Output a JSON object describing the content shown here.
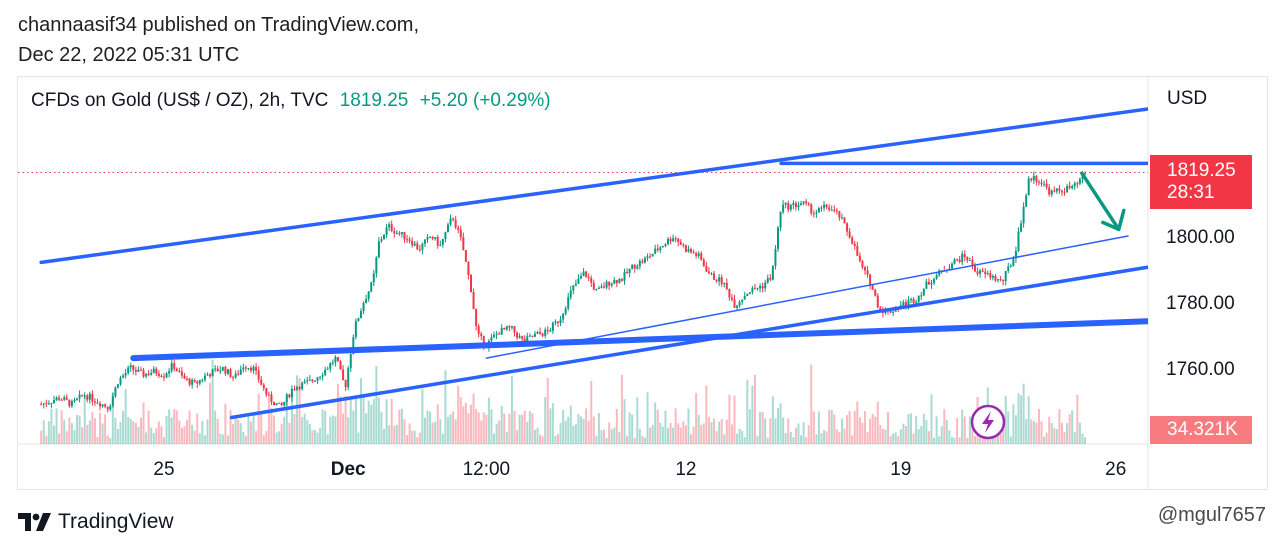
{
  "header": {
    "line1": "channaasif34 published on TradingView.com,",
    "line2": "Dec 22, 2022 05:31 UTC"
  },
  "legend": {
    "symbol": "CFDs on Gold (US$ / OZ), 2h, TVC",
    "price": "1819.25",
    "change": "+5.20 (+0.29%)"
  },
  "price_tag": {
    "price": "1819.25",
    "countdown": "28:31"
  },
  "volume_tag": "34.321K",
  "footer": {
    "brand": "TradingView",
    "watermark": "@mgul7657"
  },
  "colors": {
    "up": "#089981",
    "down": "#f23645",
    "drawing": "#2962ff",
    "arrow": "#089981",
    "flash": "#9c27b0"
  },
  "icons": [
    "tradingview-logo-icon",
    "lightning-icon",
    "trend-arrow-icon"
  ],
  "chart_data": {
    "type": "candlestick",
    "currency_label": "USD",
    "y_ticks": [
      1800,
      1780,
      1760
    ],
    "y_tick_labels": [
      "1800.00",
      "1780.00",
      "1760.00"
    ],
    "x_tick_labels": [
      "25",
      "Dec",
      "12:00",
      "12",
      "19",
      "26"
    ],
    "x_ticks_days": [
      0,
      6,
      10.5,
      17,
      24,
      31
    ],
    "ylim": [
      1745,
      1850
    ],
    "grid": false,
    "last_price": 1819.25,
    "close_path": [
      [
        -4.0,
        1749
      ],
      [
        -3.4,
        1751
      ],
      [
        -3.0,
        1749
      ],
      [
        -2.6,
        1752
      ],
      [
        -2.2,
        1750
      ],
      [
        -1.8,
        1748
      ],
      [
        -1.5,
        1756
      ],
      [
        -1.1,
        1760
      ],
      [
        -0.7,
        1758
      ],
      [
        -0.3,
        1759
      ],
      [
        0.0,
        1758
      ],
      [
        0.3,
        1761
      ],
      [
        0.6,
        1757
      ],
      [
        1.0,
        1755
      ],
      [
        1.4,
        1758
      ],
      [
        1.9,
        1760
      ],
      [
        2.3,
        1757
      ],
      [
        2.6,
        1761
      ],
      [
        2.9,
        1760
      ],
      [
        3.4,
        1751
      ],
      [
        3.8,
        1748
      ],
      [
        4.2,
        1754
      ],
      [
        4.8,
        1756
      ],
      [
        5.2,
        1759
      ],
      [
        5.6,
        1763
      ],
      [
        5.9,
        1754
      ],
      [
        6.2,
        1772
      ],
      [
        6.5,
        1780
      ],
      [
        6.8,
        1786
      ],
      [
        7.0,
        1798
      ],
      [
        7.3,
        1803
      ],
      [
        7.6,
        1801
      ],
      [
        8.0,
        1799
      ],
      [
        8.3,
        1796
      ],
      [
        8.7,
        1800
      ],
      [
        9.0,
        1797
      ],
      [
        9.4,
        1806
      ],
      [
        9.7,
        1798
      ],
      [
        10.0,
        1784
      ],
      [
        10.2,
        1770
      ],
      [
        10.5,
        1767
      ],
      [
        10.9,
        1771
      ],
      [
        11.3,
        1772
      ],
      [
        11.7,
        1768
      ],
      [
        12.1,
        1770
      ],
      [
        12.5,
        1771
      ],
      [
        12.9,
        1775
      ],
      [
        13.3,
        1784
      ],
      [
        13.7,
        1789
      ],
      [
        14.1,
        1783
      ],
      [
        14.5,
        1786
      ],
      [
        14.9,
        1787
      ],
      [
        15.3,
        1791
      ],
      [
        15.7,
        1793
      ],
      [
        16.2,
        1797
      ],
      [
        16.6,
        1800
      ],
      [
        17.0,
        1796
      ],
      [
        17.4,
        1794
      ],
      [
        17.8,
        1788
      ],
      [
        18.2,
        1786
      ],
      [
        18.6,
        1779
      ],
      [
        19.0,
        1783
      ],
      [
        19.5,
        1785
      ],
      [
        19.8,
        1788
      ],
      [
        20.1,
        1809
      ],
      [
        20.4,
        1809
      ],
      [
        20.8,
        1810
      ],
      [
        21.2,
        1807
      ],
      [
        21.6,
        1809
      ],
      [
        22.0,
        1806
      ],
      [
        22.4,
        1799
      ],
      [
        22.7,
        1791
      ],
      [
        23.0,
        1786
      ],
      [
        23.3,
        1778
      ],
      [
        23.6,
        1777
      ],
      [
        24.0,
        1779
      ],
      [
        24.5,
        1781
      ],
      [
        24.9,
        1786
      ],
      [
        25.3,
        1789
      ],
      [
        25.7,
        1792
      ],
      [
        26.1,
        1794
      ],
      [
        26.5,
        1789
      ],
      [
        26.9,
        1788
      ],
      [
        27.3,
        1786
      ],
      [
        27.7,
        1794
      ],
      [
        28.0,
        1809
      ],
      [
        28.2,
        1818
      ],
      [
        28.5,
        1817
      ],
      [
        28.9,
        1813
      ],
      [
        29.3,
        1814
      ],
      [
        29.7,
        1815
      ],
      [
        30.0,
        1819
      ]
    ],
    "drawings": {
      "channel_upper": [
        [
          -4.0,
          1792
        ],
        [
          34.0,
          1841
        ]
      ],
      "channel_lower": [
        [
          2.2,
          1745
        ],
        [
          33.0,
          1792
        ]
      ],
      "inner_trendline": [
        [
          10.5,
          1763
        ],
        [
          31.4,
          1800
        ]
      ],
      "horizontal_support": [
        [
          -1.0,
          1763
        ],
        [
          34.5,
          1775
        ]
      ],
      "resistance": [
        [
          20.1,
          1822
        ],
        [
          32.2,
          1822
        ]
      ],
      "projection_arrow": [
        [
          29.9,
          1819
        ],
        [
          31.1,
          1802
        ]
      ]
    }
  }
}
